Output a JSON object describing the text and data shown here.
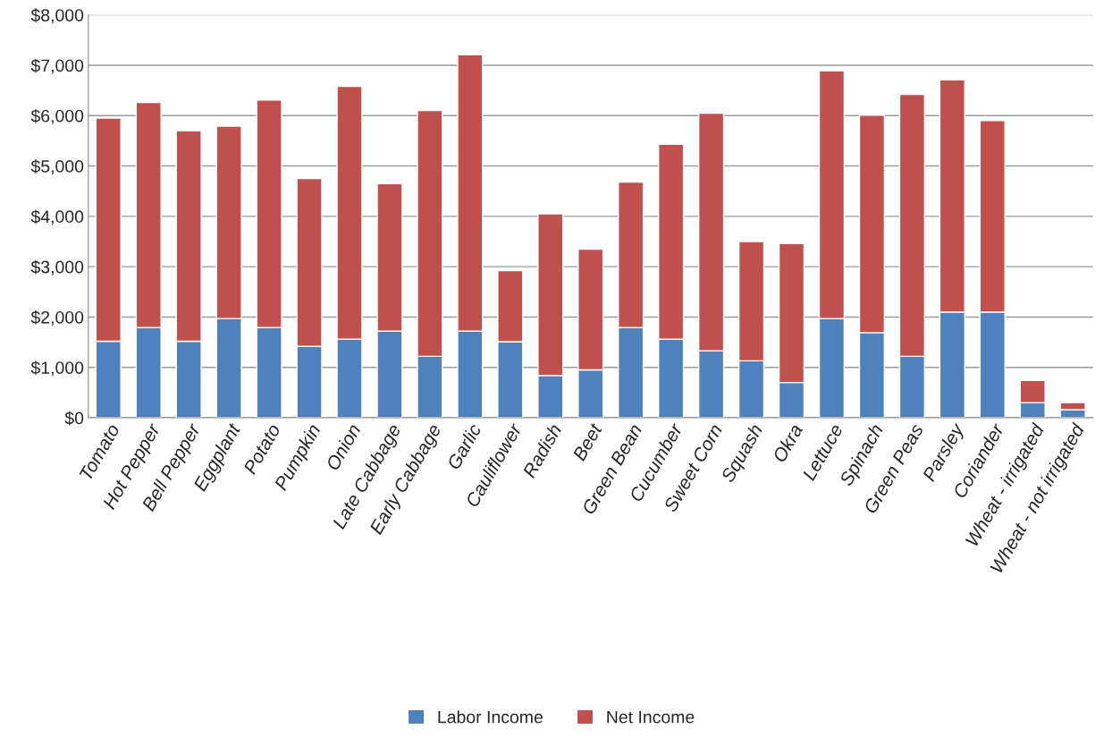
{
  "chart_data": {
    "type": "bar",
    "stacked": true,
    "categories": [
      "Tomato",
      "Hot Pepper",
      "Bell Pepper",
      "Eggplant",
      "Potato",
      "Pumpkin",
      "Onion",
      "Late Cabbage",
      "Early Cabbage",
      "Garlic",
      "Cauliflower",
      "Radish",
      "Beet",
      "Green Bean",
      "Cucumber",
      "Sweet Corn",
      "Squash",
      "Okra",
      "Lettuce",
      "Spinach",
      "Green Peas",
      "Parsley",
      "Coriander",
      "Wheat - irrigated",
      "Wheat - not irrigated"
    ],
    "series": [
      {
        "name": "Labor Income",
        "color": "#4f81bd",
        "values": [
          1520,
          1790,
          1520,
          1970,
          1790,
          1420,
          1560,
          1720,
          1220,
          1720,
          1510,
          840,
          950,
          1790,
          1560,
          1330,
          1130,
          700,
          1970,
          1690,
          1220,
          2100,
          2100,
          300,
          160
        ]
      },
      {
        "name": "Net Income",
        "color": "#c0504d",
        "values": [
          4430,
          4470,
          4180,
          3820,
          4520,
          3330,
          5020,
          2930,
          4880,
          5490,
          1410,
          3210,
          2400,
          2890,
          3870,
          4720,
          2370,
          2760,
          4920,
          4320,
          5200,
          4610,
          3800,
          440,
          140
        ]
      }
    ],
    "ylim": [
      0,
      8000
    ],
    "yticks": [
      {
        "value": 0,
        "label": "$0"
      },
      {
        "value": 1000,
        "label": "$1,000"
      },
      {
        "value": 2000,
        "label": "$2,000"
      },
      {
        "value": 3000,
        "label": "$3,000"
      },
      {
        "value": 4000,
        "label": "$4,000"
      },
      {
        "value": 5000,
        "label": "$5,000"
      },
      {
        "value": 6000,
        "label": "$6,000"
      },
      {
        "value": 7000,
        "label": "$7,000"
      },
      {
        "value": 8000,
        "label": "$8,000"
      }
    ],
    "grid": "y",
    "legend": "bottom"
  }
}
